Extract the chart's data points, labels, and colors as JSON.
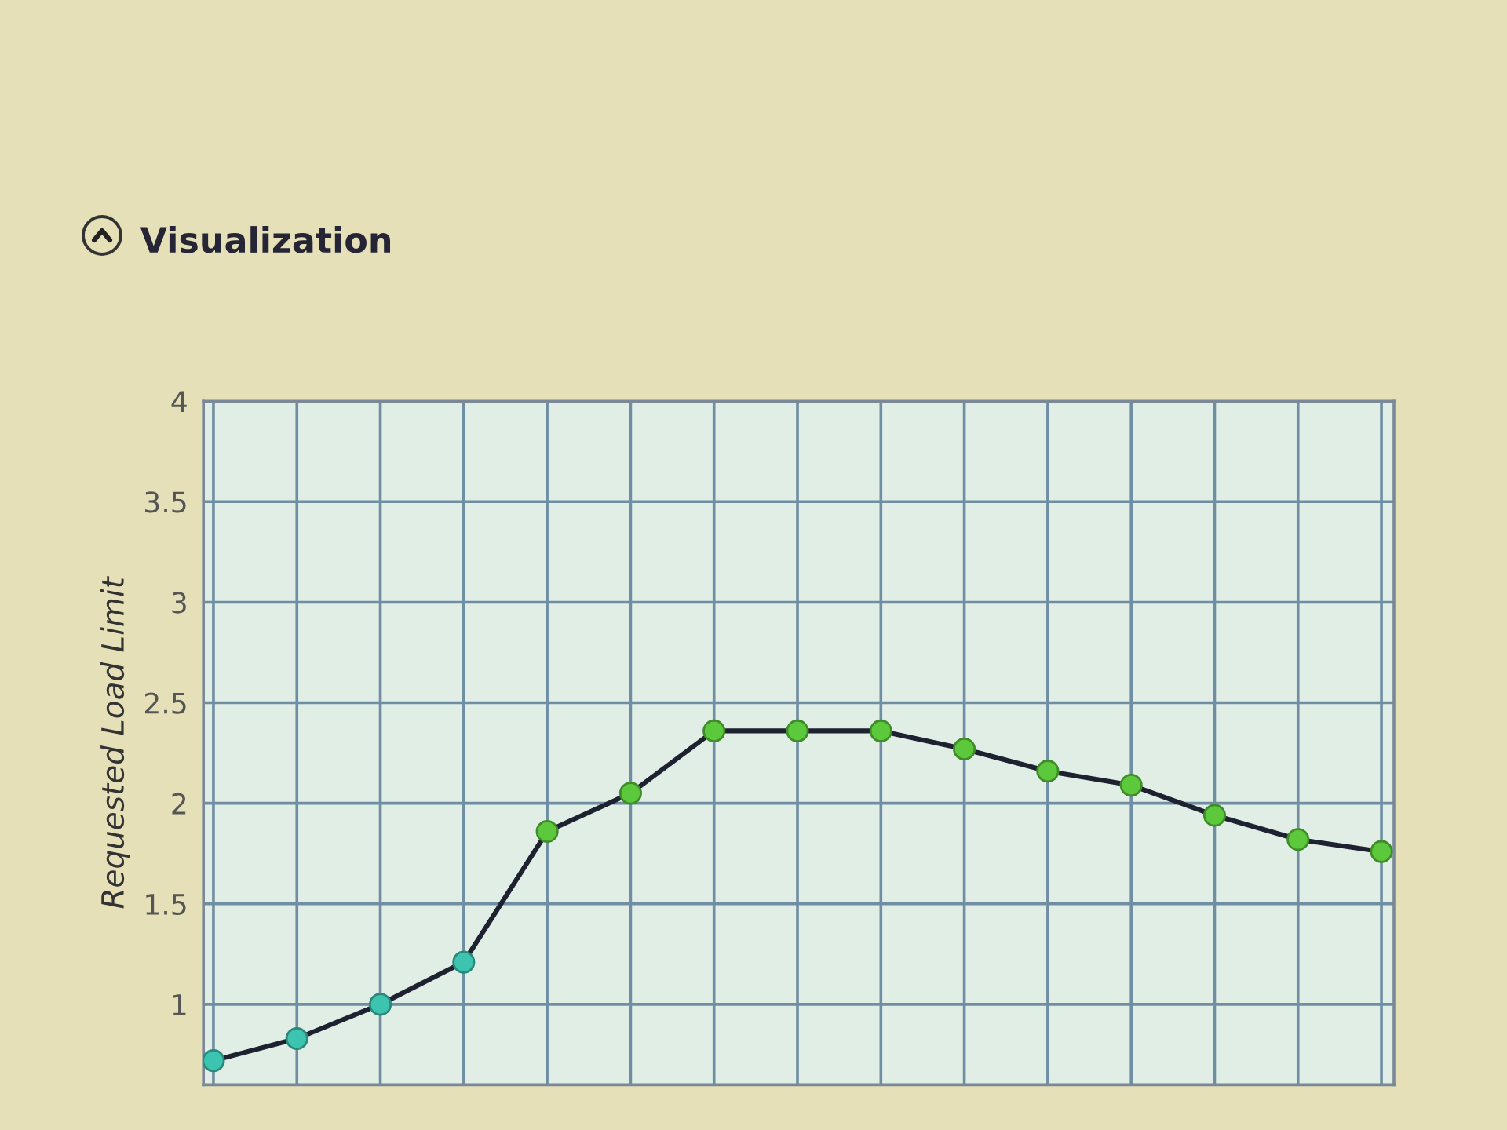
{
  "chart_data": {
    "type": "line",
    "title": "Visualization",
    "ylabel": "Requested Load Limit",
    "categories": [
      null,
      null,
      null,
      null,
      null,
      null,
      null,
      null,
      null,
      null,
      null,
      null,
      null,
      null,
      null
    ],
    "series": [
      {
        "color": "#1e2230",
        "colors": [
          "#3cc4b0",
          "#3cc4b0",
          "#3cc4b0",
          "#3cc4b0",
          "#5cc83c",
          "#5cc83c",
          "#5cc83c",
          "#5cc83c",
          "#5cc83c",
          "#5cc83c",
          "#5cc83c",
          "#5cc83c",
          "#5cc83c",
          "#5cc83c",
          "#5cc83c"
        ],
        "values": [
          0.72,
          0.83,
          1.0,
          1.21,
          1.86,
          2.05,
          2.36,
          2.36,
          2.36,
          2.27,
          2.16,
          2.09,
          1.94,
          1.82,
          1.76
        ]
      }
    ],
    "ylim": [
      0.6,
      4
    ],
    "yticks": [
      1,
      1.5,
      2,
      2.5,
      3,
      3.5,
      4
    ],
    "grid": true,
    "marker": "circle",
    "line_style": "solid",
    "tick_labels": "y"
  }
}
